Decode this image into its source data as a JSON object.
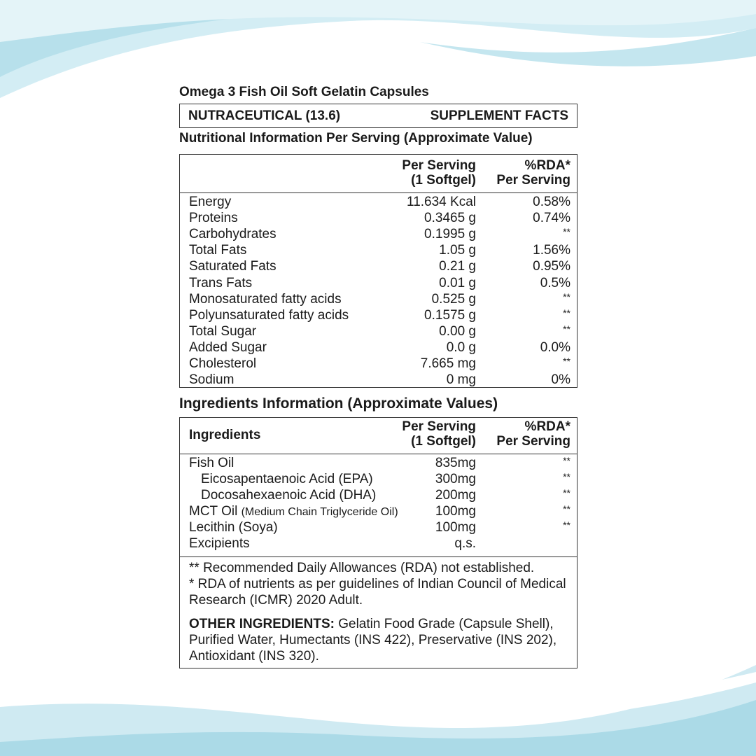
{
  "colors": {
    "wave_light": "#cfeaf2",
    "wave_mid": "#a9d9e6",
    "border": "#333333"
  },
  "title": "Omega 3 Fish Oil Soft Gelatin Capsules",
  "banner": {
    "left": "NUTRACEUTICAL (13.6)",
    "right": "SUPPLEMENT FACTS"
  },
  "nutrition": {
    "heading": "Nutritional Information Per Serving (Approximate Value)",
    "header": {
      "per_serving_1": "Per Serving",
      "per_serving_2": "(1 Softgel)",
      "rda_1": "%RDA*",
      "rda_2": "Per Serving"
    },
    "rows": [
      {
        "name": "Energy",
        "value": "11.634 Kcal",
        "rda": "0.58%"
      },
      {
        "name": "Proteins",
        "value": "0.3465 g",
        "rda": "0.74%"
      },
      {
        "name": "Carbohydrates",
        "value": "0.1995 g",
        "rda": "**"
      },
      {
        "name": "Total Fats",
        "value": "1.05 g",
        "rda": "1.56%"
      },
      {
        "name": "Saturated Fats",
        "value": "0.21 g",
        "rda": "0.95%"
      },
      {
        "name": "Trans Fats",
        "value": "0.01 g",
        "rda": "0.5%"
      },
      {
        "name": "Monosaturated fatty acids",
        "value": "0.525 g",
        "rda": "**"
      },
      {
        "name": "Polyunsaturated fatty acids",
        "value": "0.1575 g",
        "rda": "**"
      },
      {
        "name": "Total Sugar",
        "value": "0.00 g",
        "rda": "**"
      },
      {
        "name": "Added Sugar",
        "value": "0.0 g",
        "rda": "0.0%"
      },
      {
        "name": "Cholesterol",
        "value": "7.665 mg",
        "rda": "**"
      },
      {
        "name": "Sodium",
        "value": "0 mg",
        "rda": "0%"
      }
    ]
  },
  "ingredients": {
    "heading": "Ingredients Information (Approximate Values)",
    "header": {
      "label": "Ingredients",
      "per_serving_1": "Per Serving",
      "per_serving_2": "(1 Softgel)",
      "rda_1": "%RDA*",
      "rda_2": "Per Serving"
    },
    "rows": [
      {
        "name": "Fish Oil",
        "note": "",
        "value": "835mg",
        "rda": "**"
      },
      {
        "name": "Eicosapentaenoic Acid (EPA)",
        "note": "",
        "value": "300mg",
        "rda": "**"
      },
      {
        "name": "Docosahexaenoic Acid (DHA)",
        "note": "",
        "value": "200mg",
        "rda": "**"
      },
      {
        "name": "MCT Oil",
        "note": "(Medium Chain Triglyceride Oil)",
        "value": "100mg",
        "rda": "**"
      },
      {
        "name": "Lecithin (Soya)",
        "note": "",
        "value": "100mg",
        "rda": "**"
      },
      {
        "name": "Excipients",
        "note": "",
        "value": "q.s.",
        "rda": ""
      }
    ],
    "footnote_1": "** Recommended Daily Allowances (RDA) not established.",
    "footnote_2": "*  RDA of nutrients as per guidelines of Indian Council of Medical Research (ICMR) 2020 Adult.",
    "other_label": "OTHER INGREDIENTS:",
    "other_text": " Gelatin Food Grade (Capsule Shell), Purified Water, Humectants (INS 422), Preservative (INS 202), Antioxidant (INS 320)."
  }
}
